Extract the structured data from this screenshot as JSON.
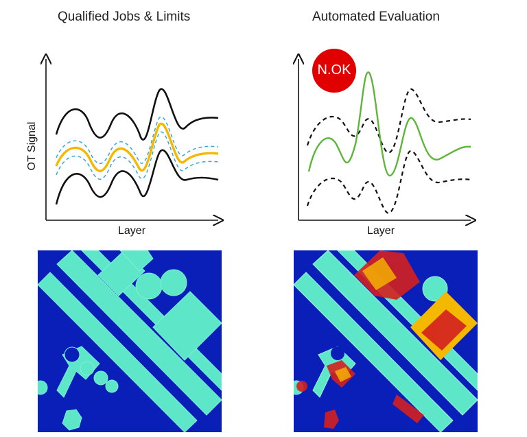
{
  "left_panel": {
    "title": "Qualified Jobs & Limits",
    "xlabel": "Layer",
    "ylabel": "OT Signal"
  },
  "right_panel": {
    "title": "Automated Evaluation",
    "xlabel": "Layer",
    "status_badge": "N.OK"
  },
  "colors": {
    "limit_line": "#111111",
    "qualified_signal": "#f5b800",
    "tolerance_band": "#3aa6d6",
    "evaluated_signal": "#5db53a",
    "status_badge": "#e10000",
    "heatmap_background": "#0a1fb8",
    "heatmap_nominal": "#5ee6c8",
    "heatmap_anomaly": "#d42020"
  }
}
